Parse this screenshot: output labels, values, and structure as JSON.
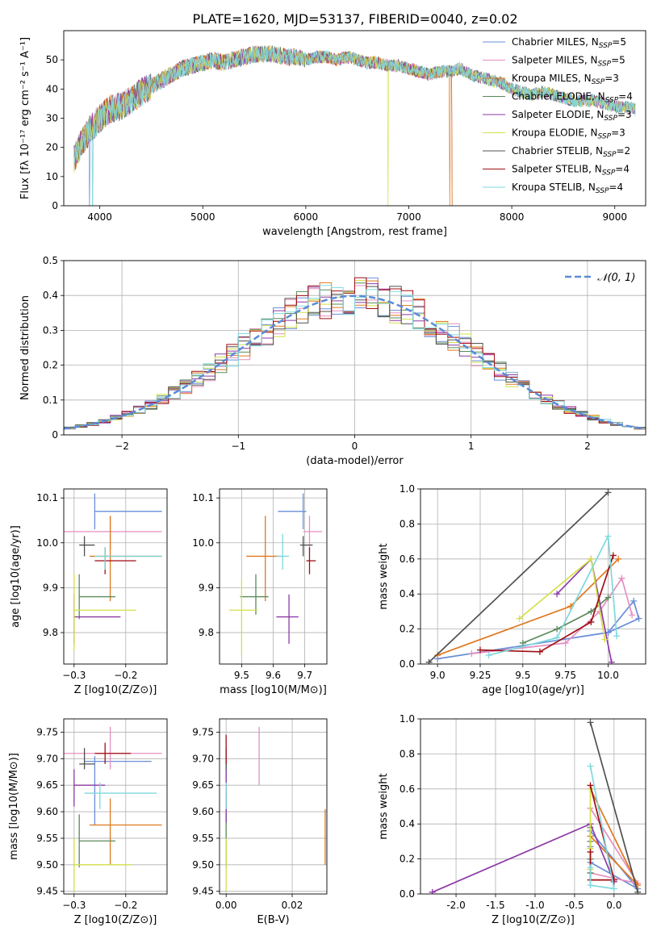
{
  "figure": {
    "title": "PLATE=1620, MJD=53137, FIBERID=0040, z=0.02"
  },
  "series": [
    {
      "name": "Chabrier MILES, N_SSP=5",
      "color": "#6a8ed8"
    },
    {
      "name": "Salpeter MILES, N_SSP=5",
      "color": "#e58fc0"
    },
    {
      "name": "Kroupa MILES, N_SSP=3",
      "color": "#e0781e"
    },
    {
      "name": "Chabrier ELODIE, N_SSP=4",
      "color": "#5a8a5a"
    },
    {
      "name": "Salpeter ELODIE, N_SSP=3",
      "color": "#8e3aa6"
    },
    {
      "name": "Kroupa ELODIE, N_SSP=3",
      "color": "#d4e04a"
    },
    {
      "name": "Chabrier STELIB, N_SSP=2",
      "color": "#505050"
    },
    {
      "name": "Salpeter STELIB, N_SSP=4",
      "color": "#a00f14"
    },
    {
      "name": "Kroupa STELIB, N_SSP=4",
      "color": "#7fd8dc"
    }
  ],
  "legend_labels": [
    {
      "base": "Chabrier MILES, N",
      "sub": "SSP",
      "tail": "=5"
    },
    {
      "base": "Salpeter MILES, N",
      "sub": "SSP",
      "tail": "=5"
    },
    {
      "base": "Kroupa MILES, N",
      "sub": "SSP",
      "tail": "=3"
    },
    {
      "base": "Chabrier ELODIE, N",
      "sub": "SSP",
      "tail": "=4"
    },
    {
      "base": "Salpeter ELODIE, N",
      "sub": "SSP",
      "tail": "=3"
    },
    {
      "base": "Kroupa ELODIE, N",
      "sub": "SSP",
      "tail": "=3"
    },
    {
      "base": "Chabrier STELIB, N",
      "sub": "SSP",
      "tail": "=2"
    },
    {
      "base": "Salpeter STELIB, N",
      "sub": "SSP",
      "tail": "=4"
    },
    {
      "base": "Kroupa STELIB, N",
      "sub": "SSP",
      "tail": "=4"
    }
  ],
  "chart_data": [
    {
      "id": "spectrum",
      "type": "line",
      "xlabel": "wavelength [Angstrom, rest frame]",
      "ylabel": "Flux [fλ 10⁻¹⁷ erg cm⁻² s⁻¹ A⁻¹]",
      "xlim": [
        3650,
        9300
      ],
      "ylim": [
        0,
        60
      ],
      "xticks": [
        4000,
        5000,
        6000,
        7000,
        8000,
        9000
      ],
      "yticks": [
        0,
        10,
        20,
        30,
        40,
        50
      ],
      "grid": false,
      "legend": "upper-right",
      "continuum": {
        "x": [
          3750,
          3800,
          3850,
          3900,
          3950,
          4000,
          4100,
          4200,
          4300,
          4400,
          4500,
          4600,
          4700,
          4800,
          4900,
          5000,
          5100,
          5200,
          5300,
          5400,
          5500,
          5600,
          5700,
          5800,
          5900,
          6000,
          6100,
          6200,
          6300,
          6400,
          6500,
          6600,
          6700,
          6800,
          6900,
          7000,
          7100,
          7200,
          7300,
          7400,
          7500,
          7600,
          7700,
          7800,
          7900,
          8000,
          8100,
          8200,
          8300,
          8400,
          8500,
          8600,
          8700,
          8800,
          8900,
          9000,
          9100,
          9200
        ],
        "y": [
          16,
          20,
          23,
          26,
          28,
          30,
          33,
          34,
          36,
          39,
          41,
          43,
          45,
          47,
          48,
          49,
          50,
          49,
          50,
          51,
          52,
          52,
          52,
          51,
          51,
          50,
          51,
          51,
          50,
          51,
          50,
          49,
          49,
          48,
          48,
          47,
          46,
          45,
          46,
          46,
          47,
          45,
          44,
          43,
          42,
          40,
          39,
          38,
          39,
          38,
          37,
          36,
          36,
          36,
          35,
          34,
          34,
          33
        ]
      },
      "dropouts": [
        {
          "series": 0,
          "x": 3900
        },
        {
          "series": 8,
          "x": 3930
        },
        {
          "series": 5,
          "x": 6800
        },
        {
          "series": 7,
          "x": 7420
        },
        {
          "series": 2,
          "x": 7400
        }
      ]
    },
    {
      "id": "residuals",
      "type": "histogram",
      "xlabel": "(data-model)/error",
      "ylabel": "Normed distribution",
      "xlim": [
        -2.5,
        2.5
      ],
      "ylim": [
        0,
        0.5
      ],
      "xticks": [
        -2,
        -1,
        0,
        1,
        2
      ],
      "yticks": [
        0.0,
        0.1,
        0.2,
        0.3,
        0.4,
        0.5
      ],
      "grid": true,
      "legend": "upper-right",
      "reference": {
        "name": "𝒩(0, 1)",
        "mean": 0,
        "sigma": 1,
        "color": "#5b8bd9"
      },
      "bin_width": 0.1
    },
    {
      "id": "age_vs_Z",
      "type": "errorbar",
      "xlabel": "Z [log10(Z/Z⊙)]",
      "ylabel": "age  [log10(age/yr)]",
      "xlim": [
        -0.32,
        -0.12
      ],
      "ylim": [
        9.73,
        10.12
      ],
      "xticks": [
        -0.3,
        -0.2
      ],
      "yticks": [
        9.8,
        9.9,
        10.0,
        10.1
      ],
      "grid": true,
      "points": [
        {
          "series": 0,
          "x": -0.26,
          "y": 10.07,
          "xerr": [
            0.0,
            0.13
          ],
          "yerr": [
            0.04,
            0.04
          ]
        },
        {
          "series": 1,
          "x": -0.23,
          "y": 10.025,
          "xerr": [
            0.09,
            0.1
          ],
          "yerr": [
            0.04,
            0.035
          ]
        },
        {
          "series": 2,
          "x": -0.23,
          "y": 9.97,
          "xerr": [
            0.04,
            0.1
          ],
          "yerr": [
            0.1,
            0.09
          ]
        },
        {
          "series": 3,
          "x": -0.29,
          "y": 9.88,
          "xerr": [
            0.0,
            0.07
          ],
          "yerr": [
            0.05,
            0.05
          ]
        },
        {
          "series": 4,
          "x": -0.3,
          "y": 9.835,
          "xerr": [
            0.0,
            0.09
          ],
          "yerr": [
            0.06,
            0.05
          ]
        },
        {
          "series": 5,
          "x": -0.3,
          "y": 9.85,
          "xerr": [
            0.0,
            0.12
          ],
          "yerr": [
            0.09,
            0.08
          ]
        },
        {
          "series": 6,
          "x": -0.28,
          "y": 9.995,
          "xerr": [
            0.01,
            0.02
          ],
          "yerr": [
            0.025,
            0.02
          ]
        },
        {
          "series": 7,
          "x": -0.24,
          "y": 9.96,
          "xerr": [
            0.02,
            0.06
          ],
          "yerr": [
            0.03,
            0.03
          ]
        },
        {
          "series": 8,
          "x": -0.24,
          "y": 9.97,
          "xerr": [
            0.02,
            0.11
          ],
          "yerr": [
            0.03,
            0.02
          ]
        }
      ]
    },
    {
      "id": "age_vs_mass",
      "type": "errorbar",
      "xlabel": "mass [log10(M/M⊙)]",
      "ylabel": "",
      "xlim": [
        9.43,
        9.77
      ],
      "ylim": [
        9.73,
        10.12
      ],
      "xticks": [
        9.5,
        9.6,
        9.7
      ],
      "yticks": [
        9.8,
        9.9,
        10.0,
        10.1
      ],
      "grid": true,
      "points": [
        {
          "series": 0,
          "x": 9.695,
          "y": 10.07,
          "xerr": [
            0.08,
            0.01
          ],
          "yerr": [
            0.04,
            0.04
          ]
        },
        {
          "series": 1,
          "x": 9.715,
          "y": 10.025,
          "xerr": [
            0.02,
            0.04
          ],
          "yerr": [
            0.04,
            0.035
          ]
        },
        {
          "series": 2,
          "x": 9.575,
          "y": 9.97,
          "xerr": [
            0.06,
            0.05
          ],
          "yerr": [
            0.1,
            0.09
          ]
        },
        {
          "series": 3,
          "x": 9.545,
          "y": 9.88,
          "xerr": [
            0.05,
            0.04
          ],
          "yerr": [
            0.04,
            0.05
          ]
        },
        {
          "series": 4,
          "x": 9.65,
          "y": 9.835,
          "xerr": [
            0.04,
            0.03
          ],
          "yerr": [
            0.06,
            0.05
          ]
        },
        {
          "series": 5,
          "x": 9.5,
          "y": 9.85,
          "xerr": [
            0.04,
            0.05
          ],
          "yerr": [
            0.1,
            0.07
          ]
        },
        {
          "series": 6,
          "x": 9.695,
          "y": 9.995,
          "xerr": [
            0.01,
            0.03
          ],
          "yerr": [
            0.025,
            0.02
          ]
        },
        {
          "series": 7,
          "x": 9.715,
          "y": 9.96,
          "xerr": [
            0.01,
            0.02
          ],
          "yerr": [
            0.03,
            0.03
          ]
        },
        {
          "series": 8,
          "x": 9.63,
          "y": 9.97,
          "xerr": [
            0.02,
            0.02
          ],
          "yerr": [
            0.03,
            0.05
          ]
        }
      ]
    },
    {
      "id": "massweight_vs_age",
      "type": "line",
      "xlabel": "age  [log10(age/yr)]",
      "ylabel": "mass weight",
      "xlim": [
        8.9,
        10.22
      ],
      "ylim": [
        0,
        1.0
      ],
      "xticks": [
        9.0,
        9.25,
        9.5,
        9.75,
        10.0
      ],
      "yticks": [
        0.0,
        0.2,
        0.4,
        0.6,
        0.8,
        1.0
      ],
      "grid": true,
      "series_points": [
        {
          "series": 0,
          "x": [
            9.0,
            10.0,
            10.15,
            10.18,
            10.0
          ],
          "y": [
            0.03,
            0.18,
            0.36,
            0.26,
            0.18
          ]
        },
        {
          "series": 1,
          "x": [
            9.2,
            9.75,
            9.95,
            10.08,
            10.14
          ],
          "y": [
            0.06,
            0.12,
            0.3,
            0.49,
            0.28
          ]
        },
        {
          "series": 2,
          "x": [
            9.0,
            9.78,
            10.06
          ],
          "y": [
            0.05,
            0.33,
            0.6
          ]
        },
        {
          "series": 3,
          "x": [
            9.5,
            9.7,
            9.9,
            10.0
          ],
          "y": [
            0.12,
            0.2,
            0.3,
            0.38
          ]
        },
        {
          "series": 4,
          "x": [
            9.7,
            9.9,
            10.02
          ],
          "y": [
            0.4,
            0.6,
            0.01
          ]
        },
        {
          "series": 5,
          "x": [
            9.48,
            9.9,
            9.98
          ],
          "y": [
            0.26,
            0.6,
            0.14
          ]
        },
        {
          "series": 6,
          "x": [
            8.95,
            10.0
          ],
          "y": [
            0.01,
            0.98
          ]
        },
        {
          "series": 7,
          "x": [
            9.25,
            9.6,
            9.9,
            10.03
          ],
          "y": [
            0.08,
            0.07,
            0.24,
            0.62
          ]
        },
        {
          "series": 8,
          "x": [
            9.3,
            9.7,
            10.0,
            10.05
          ],
          "y": [
            0.05,
            0.15,
            0.73,
            0.16
          ]
        }
      ]
    },
    {
      "id": "mass_vs_Z",
      "type": "errorbar",
      "xlabel": "Z [log10(Z/Z⊙)]",
      "ylabel": "mass [log10(M/M⊙)]",
      "xlim": [
        -0.32,
        -0.12
      ],
      "ylim": [
        9.445,
        9.775
      ],
      "xticks": [
        -0.3,
        -0.2
      ],
      "yticks": [
        9.45,
        9.5,
        9.55,
        9.6,
        9.65,
        9.7,
        9.75
      ],
      "grid": true,
      "points": [
        {
          "series": 0,
          "x": -0.26,
          "y": 9.695,
          "xerr": [
            0.02,
            0.11
          ],
          "yerr": [
            0.12,
            0.01
          ]
        },
        {
          "series": 1,
          "x": -0.23,
          "y": 9.71,
          "xerr": [
            0.09,
            0.1
          ],
          "yerr": [
            0.03,
            0.05
          ]
        },
        {
          "series": 2,
          "x": -0.23,
          "y": 9.575,
          "xerr": [
            0.04,
            0.1
          ],
          "yerr": [
            0.075,
            0.05
          ]
        },
        {
          "series": 3,
          "x": -0.29,
          "y": 9.545,
          "xerr": [
            0.0,
            0.07
          ],
          "yerr": [
            0.05,
            0.05
          ]
        },
        {
          "series": 4,
          "x": -0.3,
          "y": 9.65,
          "xerr": [
            0.0,
            0.06
          ],
          "yerr": [
            0.04,
            0.03
          ]
        },
        {
          "series": 5,
          "x": -0.3,
          "y": 9.5,
          "xerr": [
            0.0,
            0.11
          ],
          "yerr": [
            0.05,
            0.05
          ]
        },
        {
          "series": 6,
          "x": -0.28,
          "y": 9.69,
          "xerr": [
            0.01,
            0.02
          ],
          "yerr": [
            0.01,
            0.03
          ]
        },
        {
          "series": 7,
          "x": -0.24,
          "y": 9.71,
          "xerr": [
            0.02,
            0.05
          ],
          "yerr": [
            0.02,
            0.02
          ]
        },
        {
          "series": 8,
          "x": -0.25,
          "y": 9.635,
          "xerr": [
            0.03,
            0.11
          ],
          "yerr": [
            0.03,
            0.02
          ]
        }
      ]
    },
    {
      "id": "mass_vs_EBV",
      "type": "errorbar",
      "xlabel": "E(B-V)",
      "ylabel": "",
      "xlim": [
        -0.002,
        0.0305
      ],
      "ylim": [
        9.445,
        9.775
      ],
      "xticks": [
        0.0,
        0.02
      ],
      "yticks": [
        9.45,
        9.5,
        9.55,
        9.6,
        9.65,
        9.7,
        9.75
      ],
      "grid": true,
      "points": [
        {
          "series": 0,
          "x": 0.0,
          "y": 9.695,
          "xerr": [
            0,
            0
          ],
          "yerr": [
            0.12,
            0.01
          ]
        },
        {
          "series": 1,
          "x": 0.01,
          "y": 9.71,
          "xerr": [
            0,
            0
          ],
          "yerr": [
            0.06,
            0.05
          ]
        },
        {
          "series": 2,
          "x": 0.03,
          "y": 9.55,
          "xerr": [
            0,
            0
          ],
          "yerr": [
            0.05,
            0.055
          ]
        },
        {
          "series": 3,
          "x": 0.0,
          "y": 9.545,
          "xerr": [
            0,
            0
          ],
          "yerr": [
            0.05,
            0.05
          ]
        },
        {
          "series": 4,
          "x": 0.0,
          "y": 9.65,
          "xerr": [
            0,
            0
          ],
          "yerr": [
            0.07,
            0.03
          ]
        },
        {
          "series": 5,
          "x": 0.0,
          "y": 9.5,
          "xerr": [
            0,
            0
          ],
          "yerr": [
            0.05,
            0.05
          ]
        },
        {
          "series": 6,
          "x": 0.0,
          "y": 9.69,
          "xerr": [
            0,
            0
          ],
          "yerr": [
            0.01,
            0.03
          ]
        },
        {
          "series": 7,
          "x": 0.0,
          "y": 9.71,
          "xerr": [
            0,
            0
          ],
          "yerr": [
            0.02,
            0.035
          ]
        },
        {
          "series": 8,
          "x": 0.0,
          "y": 9.635,
          "xerr": [
            0,
            0
          ],
          "yerr": [
            0.03,
            0.02
          ]
        }
      ]
    },
    {
      "id": "massweight_vs_Z",
      "type": "line",
      "xlabel": "Z [log10(Z/Z⊙)]",
      "ylabel": "mass weight",
      "xlim": [
        -2.45,
        0.4
      ],
      "ylim": [
        0,
        1.0
      ],
      "xticks": [
        -2.0,
        -1.5,
        -1.0,
        -0.5,
        0.0
      ],
      "yticks": [
        0.0,
        0.2,
        0.4,
        0.6,
        0.8,
        1.0
      ],
      "grid": true,
      "series_points": [
        {
          "series": 0,
          "x": [
            -0.3,
            -0.3,
            0.3,
            -0.3,
            -0.3
          ],
          "y": [
            0.27,
            0.18,
            0.03,
            0.36,
            0.2
          ]
        },
        {
          "series": 1,
          "x": [
            -0.3,
            -0.3,
            0.3,
            -0.3
          ],
          "y": [
            0.3,
            0.12,
            0.06,
            0.49
          ]
        },
        {
          "series": 2,
          "x": [
            -0.3,
            0.3,
            -0.3
          ],
          "y": [
            0.6,
            0.05,
            0.33
          ]
        },
        {
          "series": 3,
          "x": [
            -0.3,
            -0.3,
            -0.3,
            -0.3
          ],
          "y": [
            0.12,
            0.2,
            0.3,
            0.38
          ]
        },
        {
          "series": 4,
          "x": [
            -2.3,
            -0.3,
            0.0
          ],
          "y": [
            0.01,
            0.4,
            0.07
          ]
        },
        {
          "series": 5,
          "x": [
            -0.3,
            -0.3,
            -0.3
          ],
          "y": [
            0.26,
            0.6,
            0.14
          ]
        },
        {
          "series": 6,
          "x": [
            -0.3,
            0.3
          ],
          "y": [
            0.98,
            0.01
          ]
        },
        {
          "series": 7,
          "x": [
            -0.3,
            -0.3,
            0.0,
            -0.3
          ],
          "y": [
            0.24,
            0.08,
            0.08,
            0.62
          ]
        },
        {
          "series": 8,
          "x": [
            -0.3,
            -0.3,
            0.0,
            -0.3
          ],
          "y": [
            0.15,
            0.05,
            0.03,
            0.73
          ]
        }
      ]
    }
  ]
}
